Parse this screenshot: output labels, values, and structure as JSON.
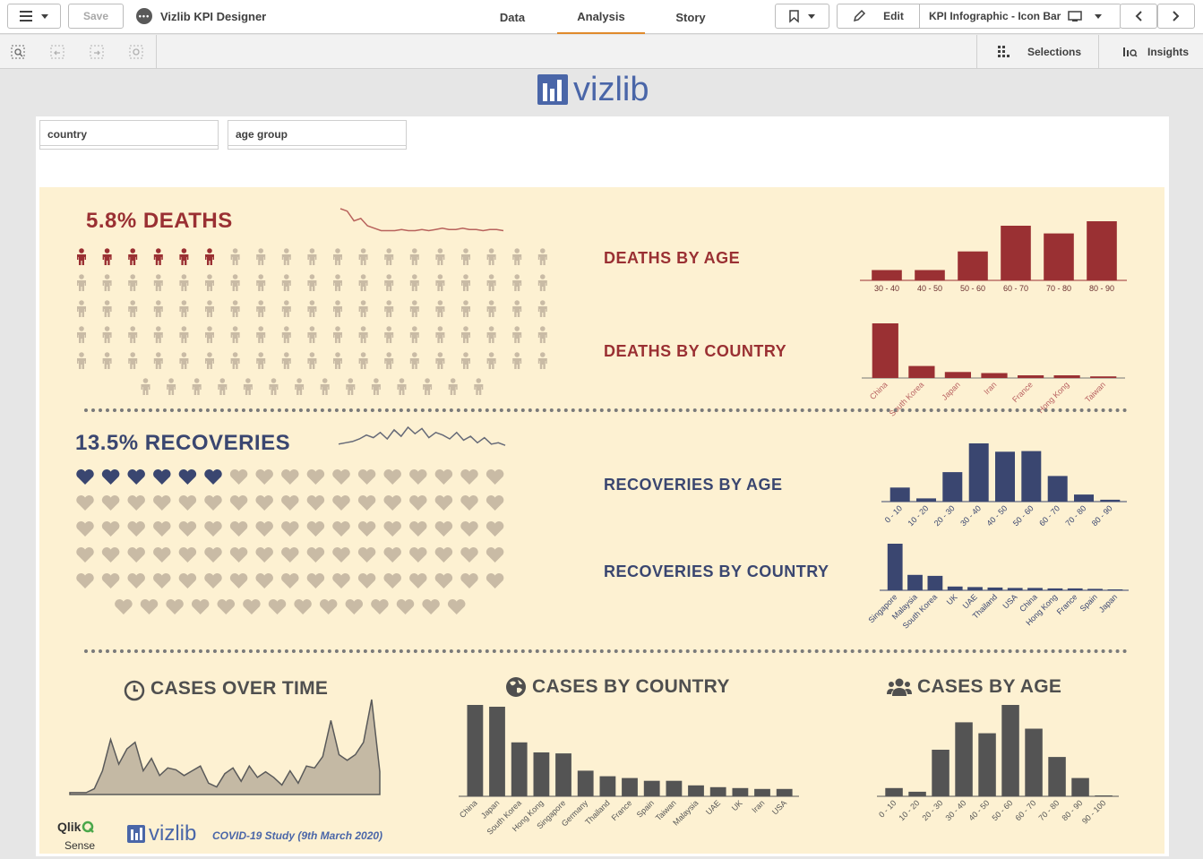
{
  "toolbar": {
    "save_label": "Save",
    "app_title": "Vizlib KPI Designer",
    "tabs": [
      {
        "label": "Data"
      },
      {
        "label": "Analysis"
      },
      {
        "label": "Story"
      }
    ],
    "edit_label": "Edit",
    "sheet_name": "KPI Infographic - Icon Bar"
  },
  "subbar": {
    "selections_label": "Selections",
    "insights_label": "Insights"
  },
  "logo": {
    "text": "vizlib"
  },
  "filters": [
    {
      "label": "country"
    },
    {
      "label": "age group"
    }
  ],
  "deaths": {
    "headline": "5.8% DEATHS",
    "highlighted": 6,
    "icon_rows": [
      19,
      19,
      19,
      19,
      19,
      14
    ],
    "sparkline": [
      22,
      20,
      12,
      14,
      8,
      6,
      4,
      4,
      4,
      5,
      4,
      4,
      5,
      4,
      5,
      6,
      5,
      5,
      6,
      5,
      5,
      4,
      5,
      5,
      4
    ],
    "color": "#9a3033",
    "inactive_color": "#c9bba5"
  },
  "recoveries": {
    "headline": "13.5% RECOVERIES",
    "highlighted": 6,
    "icon_rows": [
      17,
      17,
      17,
      17,
      17,
      14
    ],
    "sparkline": [
      5,
      6,
      7,
      9,
      12,
      10,
      14,
      9,
      16,
      11,
      18,
      13,
      17,
      10,
      14,
      12,
      9,
      14,
      8,
      11,
      6,
      10,
      5,
      6,
      4
    ],
    "color": "#3a4670",
    "inactive_color": "#c9bba5"
  },
  "labels": {
    "deaths_by_age": "DEATHS BY AGE",
    "deaths_by_country": "DEATHS BY COUNTRY",
    "recoveries_by_age": "RECOVERIES BY AGE",
    "recoveries_by_country": "RECOVERIES BY COUNTRY",
    "cases_over_time": "CASES OVER TIME",
    "cases_by_country": "CASES BY COUNTRY",
    "cases_by_age": "CASES BY AGE"
  },
  "footer": {
    "qlik": "Qlik",
    "sense": "Sense",
    "vizlib": "vizlib",
    "study": "COVID-19 Study (9th March 2020)"
  },
  "chart_data": [
    {
      "id": "deaths_by_age",
      "type": "bar",
      "categories": [
        "30 - 40",
        "40 - 50",
        "50 - 60",
        "60 - 70",
        "70 - 80",
        "80 - 90"
      ],
      "values": [
        16,
        16,
        45,
        85,
        73,
        92
      ],
      "color": "#9a3033"
    },
    {
      "id": "deaths_by_country",
      "type": "bar",
      "categories": [
        "China",
        "South Korea",
        "Japan",
        "Iran",
        "France",
        "Hong Kong",
        "Taiwan"
      ],
      "values": [
        100,
        22,
        11,
        9,
        5,
        5,
        3
      ],
      "color": "#9a3033"
    },
    {
      "id": "recoveries_by_age",
      "type": "bar",
      "categories": [
        "0 - 10",
        "10 - 20",
        "20 - 30",
        "30 - 40",
        "40 - 50",
        "50 - 60",
        "60 - 70",
        "70 - 80",
        "80 - 90"
      ],
      "values": [
        22,
        5,
        46,
        91,
        78,
        79,
        40,
        11,
        3
      ],
      "color": "#3a4670"
    },
    {
      "id": "recoveries_by_country",
      "type": "bar",
      "categories": [
        "Singapore",
        "Malaysia",
        "South Korea",
        "UK",
        "UAE",
        "Thailand",
        "USA",
        "China",
        "Hong Kong",
        "France",
        "Spain",
        "Japan"
      ],
      "values": [
        100,
        33,
        31,
        8,
        7,
        6,
        5,
        5,
        4,
        4,
        3,
        2
      ],
      "color": "#3a4670"
    },
    {
      "id": "cases_over_time",
      "type": "area",
      "values": [
        2,
        2,
        2,
        6,
        25,
        58,
        32,
        48,
        55,
        25,
        38,
        20,
        28,
        26,
        20,
        25,
        30,
        12,
        8,
        22,
        28,
        14,
        30,
        18,
        24,
        18,
        10,
        25,
        12,
        30,
        28,
        40,
        78,
        42,
        36,
        42,
        55,
        100,
        24
      ],
      "color": "#c4b9a4"
    },
    {
      "id": "cases_by_country",
      "type": "bar",
      "categories": [
        "China",
        "Japan",
        "South Korea",
        "Hong Kong",
        "Singapore",
        "Germany",
        "Thailand",
        "France",
        "Spain",
        "Taiwan",
        "Malaysia",
        "UAE",
        "UK",
        "Iran",
        "USA"
      ],
      "values": [
        100,
        98,
        59,
        48,
        47,
        28,
        22,
        20,
        17,
        17,
        12,
        10,
        9,
        8,
        8
      ],
      "color": "#545454"
    },
    {
      "id": "cases_by_age",
      "type": "bar",
      "categories": [
        "0 - 10",
        "10 - 20",
        "20 - 30",
        "30 - 40",
        "40 - 50",
        "50 - 60",
        "60 - 70",
        "70 - 80",
        "80 - 90",
        "90 - 100"
      ],
      "values": [
        9,
        5,
        51,
        81,
        69,
        100,
        74,
        43,
        20,
        1
      ],
      "color": "#545454"
    }
  ]
}
